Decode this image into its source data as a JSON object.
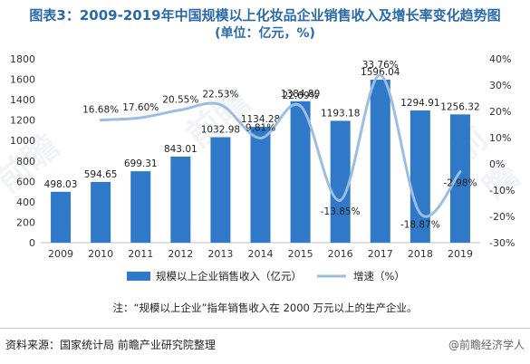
{
  "title": "图表3：2009-2019年中国规模以上化妆品企业销售收入及增长率变化趋势图",
  "subtitle": "(单位：亿元，%)",
  "note": "注：“规模以上企业”指年销售收入在 2000 万元以上的生产企业。",
  "source": "资料来源：国家统计局 前瞻产业研究院整理",
  "watermark": "@前瞻经济学人",
  "colors": {
    "bar": "#2f79c8",
    "line": "#9bbde0",
    "title": "#2b6aa8"
  },
  "chart_data": {
    "type": "bar+line",
    "categories": [
      "2009",
      "2010",
      "2011",
      "2012",
      "2013",
      "2014",
      "2015",
      "2016",
      "2017",
      "2018",
      "2019"
    ],
    "series": [
      {
        "name": "规模以上企业销售收入（亿元）",
        "type": "bar",
        "axis": "left",
        "values": [
          498.03,
          594.65,
          699.31,
          843.01,
          1032.98,
          1134.28,
          1384.89,
          1193.18,
          1596.04,
          1294.91,
          1256.32
        ]
      },
      {
        "name": "增速（%）",
        "type": "line",
        "axis": "right",
        "values": [
          null,
          16.68,
          17.6,
          20.55,
          22.53,
          9.81,
          22.09,
          -13.85,
          33.76,
          -18.87,
          -2.98
        ]
      }
    ],
    "bar_labels": [
      "498.03",
      "594.65",
      "699.31",
      "843.01",
      "1032.98",
      "1134.28",
      "1384.89",
      "1193.18",
      "1596.04",
      "1294.91",
      "1256.32"
    ],
    "line_labels": [
      "",
      "16.68%",
      "17.60%",
      "20.55%",
      "22.53%",
      "9.81%",
      "22.09%",
      "-13.85%",
      "33.76%",
      "-18.87%",
      "-2.98%"
    ],
    "y_left": {
      "min": 0,
      "max": 1800,
      "ticks": [
        0,
        200,
        400,
        600,
        800,
        1000,
        1200,
        1400,
        1600,
        1800
      ]
    },
    "y_right": {
      "min": -30,
      "max": 40,
      "ticks": [
        "-30%",
        "-20%",
        "-10%",
        "0%",
        "10%",
        "20%",
        "30%",
        "40%"
      ],
      "tick_values": [
        -30,
        -20,
        -10,
        0,
        10,
        20,
        30,
        40
      ]
    },
    "legend_position": "bottom",
    "grid": false
  }
}
